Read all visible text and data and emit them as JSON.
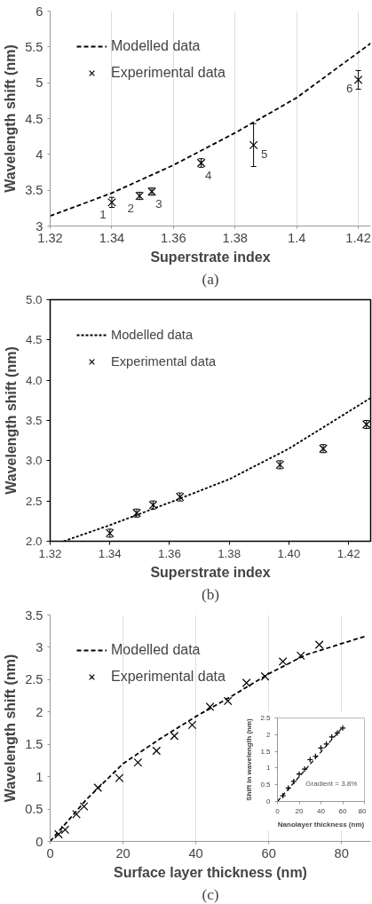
{
  "chart_data": [
    {
      "type": "scatter",
      "xlabel": "Superstrate index",
      "ylabel": "Wavelength shift (nm)",
      "xlim": [
        1.32,
        1.424
      ],
      "ylim": [
        3,
        6
      ],
      "xticks": [
        1.32,
        1.34,
        1.36,
        1.38,
        1.4,
        1.42
      ],
      "yticks": [
        3,
        3.5,
        4,
        4.5,
        5,
        5.5,
        6
      ],
      "grid": "x",
      "legend": "top left",
      "series": [
        {
          "name": "Modelled data",
          "type": "line",
          "line_style": "dashed",
          "color": "#000000",
          "x": [
            1.32,
            1.34,
            1.36,
            1.38,
            1.4,
            1.424
          ],
          "values": [
            3.14,
            3.46,
            3.85,
            4.3,
            4.79,
            5.55
          ]
        },
        {
          "name": "Experimental data",
          "marker": "x",
          "color": "#000000",
          "x": [
            1.34,
            1.349,
            1.353,
            1.369,
            1.386,
            1.42
          ],
          "values": [
            3.33,
            3.42,
            3.48,
            3.88,
            4.13,
            5.04
          ],
          "errors": [
            0.07,
            0.05,
            0.05,
            0.06,
            0.3,
            0.13
          ]
        }
      ],
      "annotations": [
        {
          "text": "1",
          "x": 1.34,
          "y": 3.33
        },
        {
          "text": "2",
          "x": 1.349,
          "y": 3.42
        },
        {
          "text": "3",
          "x": 1.353,
          "y": 3.48
        },
        {
          "text": "4",
          "x": 1.369,
          "y": 3.88
        },
        {
          "text": "5",
          "x": 1.386,
          "y": 4.13
        },
        {
          "text": "6",
          "x": 1.42,
          "y": 5.04
        },
        "(a)"
      ]
    },
    {
      "type": "scatter",
      "xlabel": "Superstrate index",
      "ylabel": "Wavelength shift (nm)",
      "xlim": [
        1.32,
        1.4274
      ],
      "ylim": [
        2,
        5
      ],
      "xticks": [
        {
          "value": 1.32,
          "label": "1.32"
        },
        {
          "value": 1.34,
          "label": "1.34"
        },
        {
          "value": 1.36,
          "label": "1.36"
        },
        {
          "value": 1.38,
          "label": "1.38"
        },
        {
          "value": 1.4,
          "label": "1.40"
        },
        {
          "value": 1.42,
          "label": "1.42"
        }
      ],
      "yticks": [
        {
          "value": 2,
          "label": "2.0"
        },
        {
          "value": 2.5,
          "label": "2.5"
        },
        {
          "value": 3,
          "label": "3.0"
        },
        {
          "value": 3.5,
          "label": "3.5"
        },
        {
          "value": 4,
          "label": "4.0"
        },
        {
          "value": 4.5,
          "label": "4.5"
        },
        {
          "value": 5,
          "label": "5.0"
        }
      ],
      "grid": false,
      "legend": "top left",
      "series": [
        {
          "name": "Modelled data",
          "type": "line",
          "line_style": "dotted",
          "color": "#000000",
          "x": [
            1.3245,
            1.34,
            1.36,
            1.38,
            1.4,
            1.4274
          ],
          "values": [
            2.0,
            2.2,
            2.48,
            2.77,
            3.15,
            3.78
          ]
        },
        {
          "name": "Experimental data",
          "marker": "x",
          "color": "#000000",
          "x": [
            1.34,
            1.349,
            1.3545,
            1.3635,
            1.397,
            1.4115,
            1.426
          ],
          "values": [
            2.1,
            2.35,
            2.45,
            2.55,
            2.95,
            3.15,
            3.45
          ],
          "errors": [
            0.05,
            0.05,
            0.05,
            0.05,
            0.05,
            0.05,
            0.05
          ]
        }
      ],
      "annotations": [
        "(b)"
      ]
    },
    {
      "type": "scatter",
      "xlabel": "Surface layer thickness (nm)",
      "ylabel": "Wavelength shift (nm)",
      "xlim": [
        0,
        88
      ],
      "ylim": [
        0,
        3.5
      ],
      "xticks": [
        0,
        20,
        40,
        60,
        80
      ],
      "yticks": [
        0,
        0.5,
        1,
        1.5,
        2,
        2.5,
        3,
        3.5
      ],
      "grid": "x",
      "legend": "top left",
      "series": [
        {
          "name": "Modelled data",
          "type": "line",
          "line_style": "dashed",
          "color": "#000000",
          "x": [
            0,
            10,
            20,
            30,
            40,
            50,
            60,
            70,
            86.5
          ],
          "values": [
            0,
            0.65,
            1.2,
            1.58,
            1.93,
            2.25,
            2.59,
            2.88,
            3.17
          ]
        },
        {
          "name": "Experimental data",
          "marker": "x",
          "color": "#000000",
          "x": [
            2.3,
            4.1,
            7.2,
            9.3,
            13.1,
            19,
            24.1,
            29.2,
            34.1,
            39,
            43.9,
            48.8,
            53.9,
            59,
            63.9,
            68.8,
            73.9
          ],
          "values": [
            0.11,
            0.18,
            0.42,
            0.54,
            0.83,
            0.98,
            1.22,
            1.4,
            1.63,
            1.8,
            2.08,
            2.17,
            2.45,
            2.55,
            2.78,
            2.87,
            3.04
          ]
        }
      ],
      "annotations": [
        "(c)"
      ]
    },
    {
      "type": "scatter",
      "xlabel": "Nanolayer thickness (nm)",
      "ylabel": "Shift in wavelength (nm)",
      "xlim": [
        0,
        80
      ],
      "ylim": [
        0,
        2.5
      ],
      "xticks": [
        0,
        20,
        40,
        60,
        80
      ],
      "yticks": [
        0,
        0.5,
        1,
        1.5,
        2,
        2.5
      ],
      "grid": false,
      "series": [
        {
          "type": "line",
          "line_style": "dashed",
          "color": "#000000",
          "x": [
            0,
            60
          ],
          "values": [
            0,
            2.22
          ]
        },
        {
          "marker": "cross",
          "color": "#000000",
          "x": [
            0,
            5,
            10,
            15,
            20,
            25,
            30,
            35,
            40,
            45,
            50,
            55,
            60
          ],
          "values": [
            0,
            0.17,
            0.4,
            0.6,
            0.82,
            0.97,
            1.25,
            1.35,
            1.6,
            1.72,
            1.93,
            2.05,
            2.2
          ]
        }
      ],
      "annotations": [
        "Gradient = 3.8%"
      ]
    }
  ]
}
